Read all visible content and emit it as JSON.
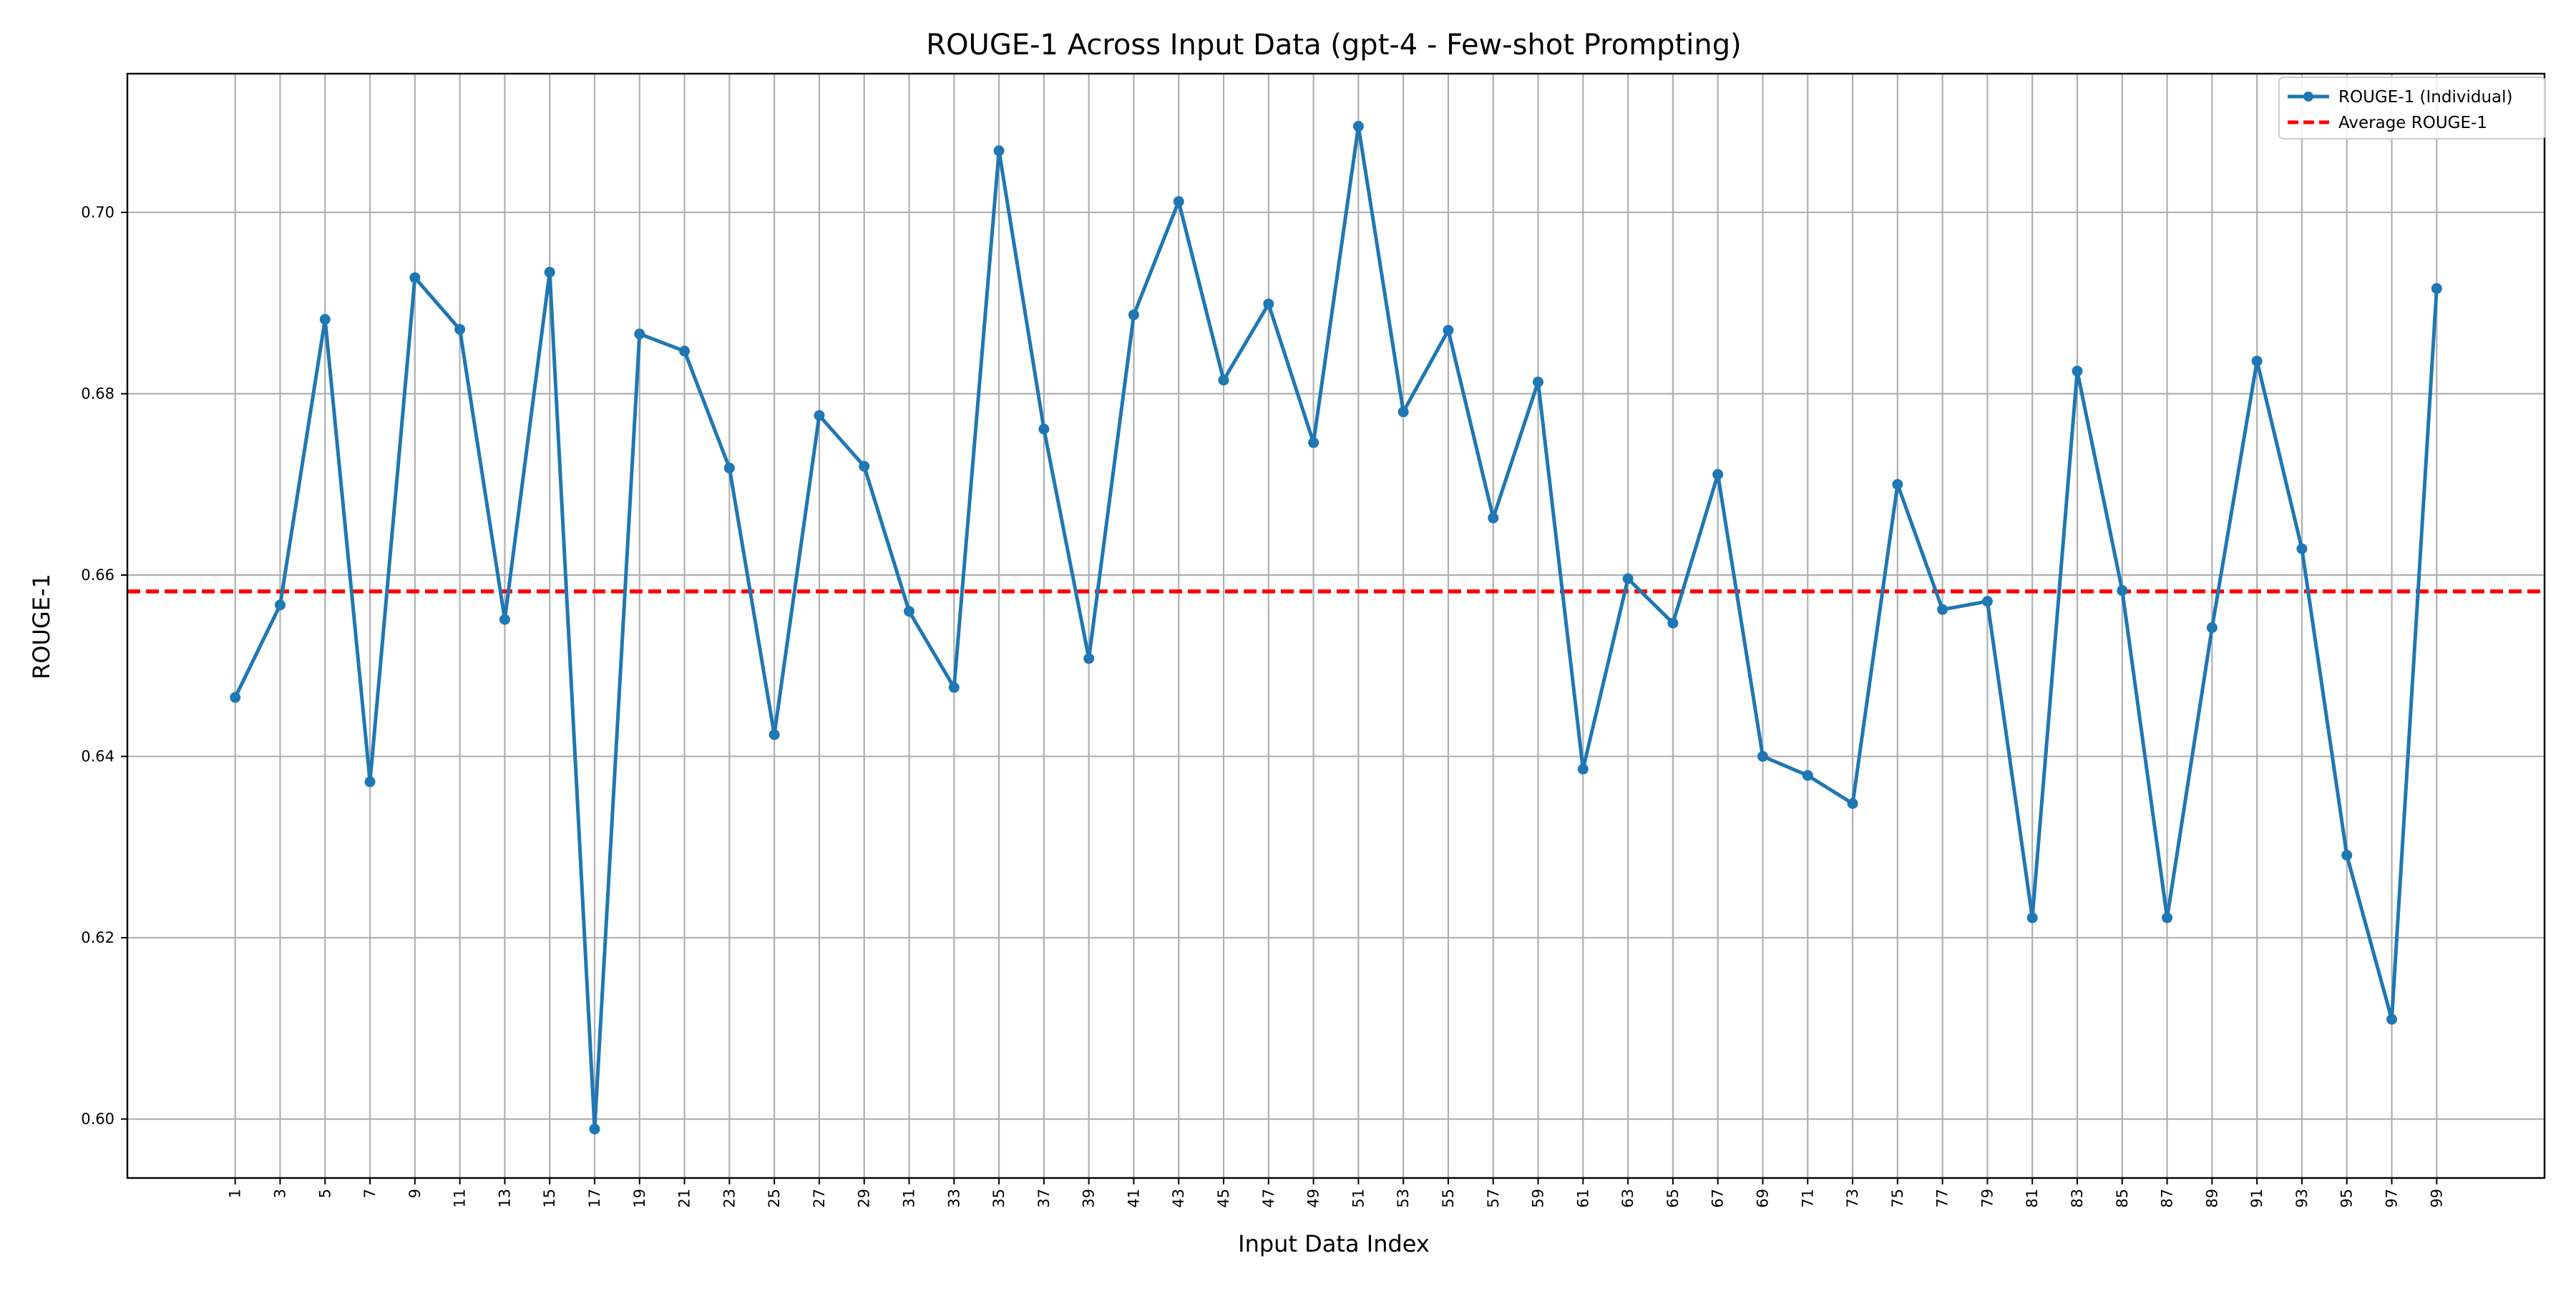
{
  "chart_data": {
    "type": "line",
    "title": "ROUGE-1 Across Input Data (gpt-4 - Few-shot Prompting)",
    "xlabel": "Input Data Index",
    "ylabel": "ROUGE-1",
    "xlim": [
      -3.8,
      103.8
    ],
    "ylim": [
      0.5935,
      0.7153
    ],
    "x_tick_labels": [
      "1",
      "3",
      "5",
      "7",
      "9",
      "11",
      "13",
      "15",
      "17",
      "19",
      "21",
      "23",
      "25",
      "27",
      "29",
      "31",
      "33",
      "35",
      "37",
      "39",
      "41",
      "43",
      "45",
      "47",
      "49",
      "51",
      "53",
      "55",
      "57",
      "59",
      "61",
      "63",
      "65",
      "67",
      "69",
      "71",
      "73",
      "75",
      "77",
      "79",
      "81",
      "83",
      "85",
      "87",
      "89",
      "91",
      "93",
      "95",
      "97",
      "99"
    ],
    "y_tick_labels": [
      "0.60",
      "0.62",
      "0.64",
      "0.66",
      "0.68",
      "0.70"
    ],
    "grid": true,
    "legend_position": "top-right",
    "series": [
      {
        "name": "ROUGE-1 (Individual)",
        "color": "#1f77b4",
        "style": "solid-with-markers",
        "x": [
          1,
          3,
          5,
          7,
          9,
          11,
          13,
          15,
          17,
          19,
          21,
          23,
          25,
          27,
          29,
          31,
          33,
          35,
          37,
          39,
          41,
          43,
          45,
          47,
          49,
          51,
          53,
          55,
          57,
          59,
          61,
          63,
          65,
          67,
          69,
          71,
          73,
          75,
          77,
          79,
          81,
          83,
          85,
          87,
          89,
          91,
          93,
          95,
          97,
          99
        ],
        "y": [
          0.6465,
          0.6567,
          0.6882,
          0.6372,
          0.6928,
          0.6871,
          0.6551,
          0.6934,
          0.5989,
          0.6866,
          0.6847,
          0.6718,
          0.6424,
          0.6776,
          0.672,
          0.656,
          0.6476,
          0.7068,
          0.6761,
          0.6508,
          0.6887,
          0.7012,
          0.6815,
          0.6899,
          0.6746,
          0.7095,
          0.678,
          0.687,
          0.6663,
          0.6813,
          0.6386,
          0.6596,
          0.6547,
          0.6711,
          0.64,
          0.6379,
          0.6348,
          0.67,
          0.6562,
          0.6571,
          0.6222,
          0.6825,
          0.6583,
          0.6222,
          0.6542,
          0.6836,
          0.6629,
          0.6291,
          0.611,
          0.6916
        ]
      },
      {
        "name": "Average ROUGE-1",
        "color": "#ff0000",
        "style": "dashed",
        "y": 0.6582
      }
    ]
  }
}
